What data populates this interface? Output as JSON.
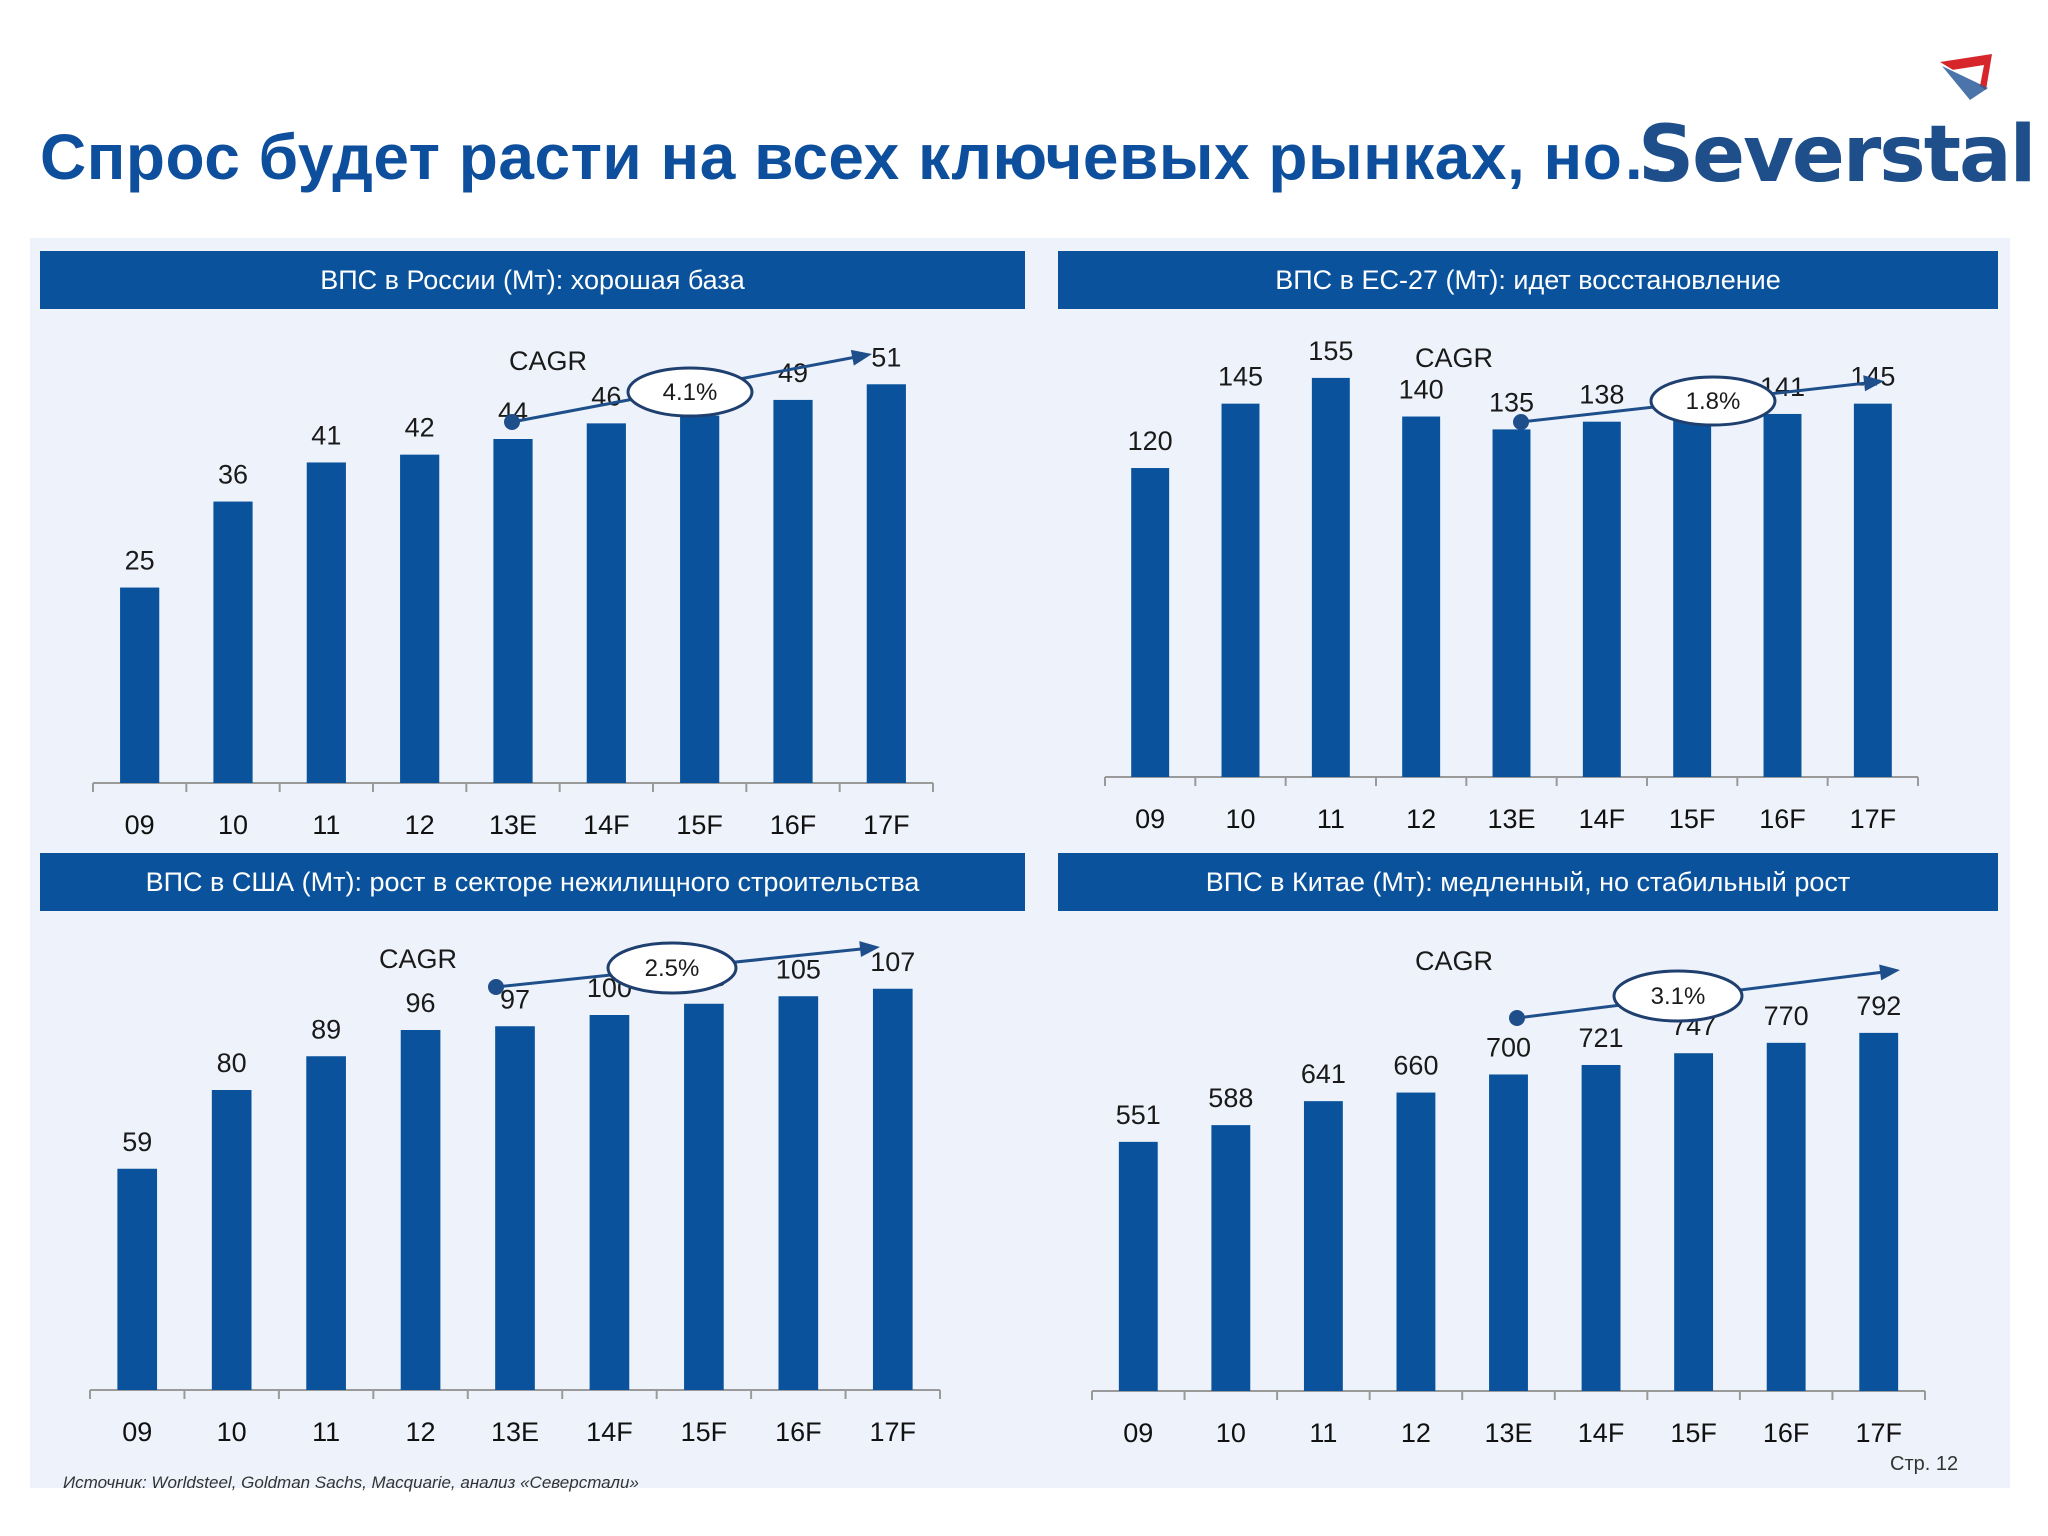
{
  "title": "Спрос будет расти на всех ключевых рынках, но…",
  "logo": {
    "text": "Severstal"
  },
  "colors": {
    "bar": "#0a539c",
    "header_bg": "#0a539c",
    "title": "#0d4f9c",
    "arrow": "#1f4f8a",
    "panel_bg": "#eef3fb"
  },
  "chart_data": [
    {
      "type": "bar",
      "title": "ВПС в России (Мт): хорошая база",
      "categories": [
        "09",
        "10",
        "11",
        "12",
        "13E",
        "14F",
        "15F",
        "16F",
        "17F"
      ],
      "values": [
        25,
        36,
        41,
        42,
        44,
        46,
        47,
        49,
        51
      ],
      "ylim": [
        0,
        55
      ],
      "cagr_label": "CAGR",
      "cagr": "4.1%",
      "grid": false
    },
    {
      "type": "bar",
      "title": "ВПС в ЕС-27 (Мт): идет восстановление",
      "categories": [
        "09",
        "10",
        "11",
        "12",
        "13E",
        "14F",
        "15F",
        "16F",
        "17F"
      ],
      "values": [
        120,
        145,
        155,
        140,
        135,
        138,
        139,
        141,
        145
      ],
      "ylim": [
        0,
        167
      ],
      "cagr_label": "CAGR",
      "cagr": "1.8%",
      "grid": false
    },
    {
      "type": "bar",
      "title": "ВПС в США (Мт): рост в секторе нежилищного строительства",
      "categories": [
        "09",
        "10",
        "11",
        "12",
        "13E",
        "14F",
        "15F",
        "16F",
        "17F"
      ],
      "values": [
        59,
        80,
        89,
        96,
        97,
        100,
        103,
        105,
        107
      ],
      "ylim": [
        0,
        120
      ],
      "cagr_label": "CAGR",
      "cagr": "2.5%",
      "grid": false
    },
    {
      "type": "bar",
      "title": "ВПС в Китае (Мт): медленный, но стабильный рост",
      "categories": [
        "09",
        "10",
        "11",
        "12",
        "13E",
        "14F",
        "15F",
        "16F",
        "17F"
      ],
      "values": [
        551,
        588,
        641,
        660,
        700,
        721,
        747,
        770,
        792
      ],
      "ylim": [
        0,
        1150
      ],
      "cagr_label": "CAGR",
      "cagr": "3.1%",
      "grid": false
    }
  ],
  "source": "Источник:  Worldsteel, Goldman Sachs, Macquarie, анализ «Северстали»",
  "page_number": "Стр. 12"
}
